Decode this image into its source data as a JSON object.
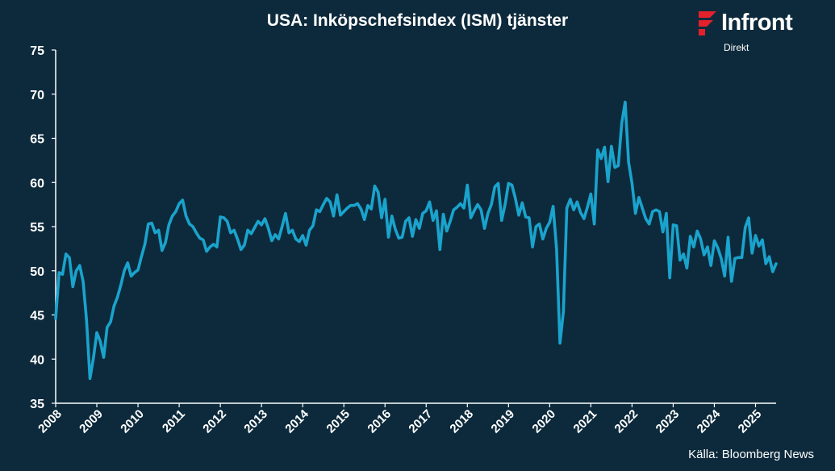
{
  "header": {
    "title": "USA: Inköpschefsindex (ISM) tjänster"
  },
  "brand": {
    "name": "Infront",
    "sub": "Direkt",
    "accent_color": "#e3212d"
  },
  "footer": {
    "source": "Källa:  Bloomberg News"
  },
  "colors": {
    "background": "#0d2a3c",
    "line": "#1aa3cc",
    "axis": "#ffffff",
    "text": "#ffffff"
  },
  "chart_data": {
    "type": "line",
    "title": "USA: Inköpschefsindex (ISM) tjänster",
    "xlabel": "",
    "ylabel": "",
    "xlim": [
      2008.0,
      2025.5
    ],
    "ylim": [
      35,
      75
    ],
    "yticks": [
      35,
      40,
      45,
      50,
      55,
      60,
      65,
      70,
      75
    ],
    "xtick_labels": [
      "2008",
      "2009",
      "2010",
      "2011",
      "2012",
      "2013",
      "2014",
      "2015",
      "2016",
      "2017",
      "2018",
      "2019",
      "2020",
      "2021",
      "2022",
      "2023",
      "2024",
      "2025"
    ],
    "grid": false,
    "legend": "none",
    "series": [
      {
        "values": [
          44.6,
          49.8,
          49.6,
          51.9,
          51.5,
          48.2,
          50.0,
          50.6,
          48.8,
          44.4,
          37.8,
          40.1,
          43.0,
          42.0,
          40.2,
          43.6,
          44.2,
          46.0,
          47.0,
          48.4,
          50.0,
          50.9,
          49.4,
          49.8,
          50.1,
          51.6,
          53.0,
          55.3,
          55.4,
          54.3,
          54.6,
          52.3,
          53.2,
          55.2,
          56.2,
          56.7,
          57.6,
          58.0,
          56.2,
          55.3,
          55.0,
          54.3,
          53.7,
          53.5,
          52.2,
          52.7,
          53.0,
          52.7,
          56.1,
          56.0,
          55.6,
          54.3,
          54.6,
          53.6,
          52.4,
          52.9,
          54.6,
          54.2,
          54.9,
          55.6,
          55.2,
          55.9,
          54.8,
          53.4,
          54.1,
          53.6,
          55.0,
          56.5,
          54.3,
          54.6,
          53.6,
          53.3,
          54.0,
          52.9,
          54.6,
          55.1,
          56.9,
          56.7,
          57.5,
          58.2,
          57.8,
          56.2,
          58.6,
          56.3,
          56.7,
          57.1,
          57.4,
          57.4,
          57.6,
          57.0,
          55.8,
          57.4,
          57.0,
          59.6,
          58.9,
          56.0,
          58.1,
          53.8,
          56.2,
          54.7,
          53.7,
          53.8,
          55.6,
          56.0,
          53.9,
          55.8,
          54.8,
          56.5,
          56.8,
          57.8,
          55.7,
          56.8,
          52.4,
          56.4,
          54.5,
          55.6,
          56.9,
          57.2,
          57.6,
          57.1,
          59.7,
          56.0,
          56.8,
          57.5,
          56.9,
          54.8,
          56.5,
          57.5,
          59.5,
          59.9,
          55.7,
          57.5,
          59.9,
          59.7,
          58.2,
          56.3,
          57.7,
          56.1,
          56.0,
          52.7,
          55.0,
          55.3,
          53.6,
          54.8,
          55.5,
          57.3,
          52.5,
          41.8,
          45.4,
          57.1,
          58.1,
          56.9,
          57.8,
          56.6,
          55.9,
          57.2,
          58.7,
          55.3,
          63.7,
          62.7,
          64.0,
          60.1,
          64.1,
          61.7,
          61.9,
          66.7,
          69.1,
          62.3,
          59.9,
          56.5,
          58.3,
          57.1,
          55.9,
          55.3,
          56.7,
          56.9,
          56.7,
          54.4,
          56.5,
          49.2,
          55.2,
          55.1,
          51.2,
          51.9,
          50.3,
          53.9,
          52.7,
          54.5,
          53.6,
          51.8,
          52.7,
          50.6,
          53.4,
          52.6,
          51.4,
          49.4,
          53.8,
          48.8,
          51.4,
          51.5,
          51.5,
          54.9,
          56.0,
          52.0,
          54.0,
          52.8,
          53.5,
          50.8,
          51.6,
          49.9,
          50.8
        ]
      }
    ]
  }
}
